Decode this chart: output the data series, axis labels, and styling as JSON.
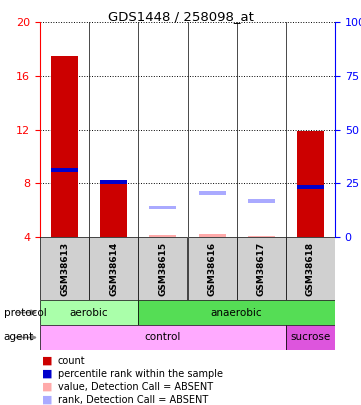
{
  "title": "GDS1448 / 258098_at",
  "samples": [
    "GSM38613",
    "GSM38614",
    "GSM38615",
    "GSM38616",
    "GSM38617",
    "GSM38618"
  ],
  "ylim_left": [
    4,
    20
  ],
  "ylim_right": [
    0,
    100
  ],
  "yticks_left": [
    4,
    8,
    12,
    16,
    20
  ],
  "yticks_right": [
    0,
    25,
    50,
    75,
    100
  ],
  "count_values": [
    17.5,
    8.1,
    4.1,
    4.1,
    4.1,
    11.9
  ],
  "rank_values": [
    9.0,
    8.1,
    null,
    null,
    null,
    7.7
  ],
  "absent_value_values": [
    null,
    null,
    4.15,
    4.2,
    4.1,
    null
  ],
  "absent_rank_values": [
    null,
    null,
    6.2,
    7.3,
    6.7,
    null
  ],
  "count_color": "#cc0000",
  "rank_color": "#0000cc",
  "absent_value_color": "#ffaaaa",
  "absent_rank_color": "#aaaaff",
  "bar_bottom": 4,
  "protocol_aerobic_span": [
    0,
    2
  ],
  "protocol_anaerobic_span": [
    2,
    6
  ],
  "agent_control_span": [
    0,
    5
  ],
  "agent_sucrose_span": [
    5,
    6
  ],
  "protocol_aerobic_color": "#aaffaa",
  "protocol_anaerobic_color": "#55dd55",
  "agent_control_color": "#ffaaff",
  "agent_sucrose_color": "#dd55dd",
  "bg_color": "#ffffff",
  "legend_items": [
    {
      "color": "#cc0000",
      "label": "count"
    },
    {
      "color": "#0000cc",
      "label": "percentile rank within the sample"
    },
    {
      "color": "#ffaaaa",
      "label": "value, Detection Call = ABSENT"
    },
    {
      "color": "#aaaaff",
      "label": "rank, Detection Call = ABSENT"
    }
  ]
}
